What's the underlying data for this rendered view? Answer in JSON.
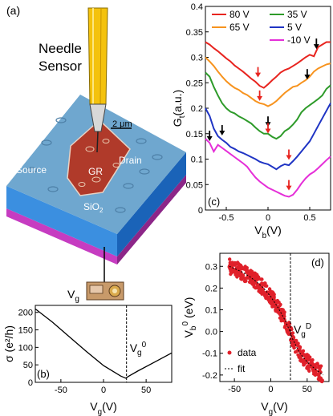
{
  "figure": {
    "panel_a": {
      "letter": "(a)",
      "needle_label_line1": "Needle",
      "needle_label_line2": "Sensor",
      "scale_bar_label": "2 μm",
      "source_label": "Source",
      "drain_label": "Drain",
      "graphene_label": "GR",
      "substrate_label": "SiO",
      "substrate_sub": "2",
      "gate_label": "V",
      "gate_sub": "g"
    },
    "colors": {
      "80V": "#e8241f",
      "65V": "#f7931e",
      "35V": "#2e9b2a",
      "5V": "#1f34c4",
      "-10V": "#e52fd8",
      "arrow_red": "#e8241f",
      "arrow_black": "#000000",
      "data_red": "#e0202a"
    }
  },
  "chart_data": [
    {
      "panel": "(b)",
      "type": "line",
      "xlabel": "V",
      "xlabel_sub": "g",
      "xlabel_unit": "(V)",
      "ylabel": "σ (e²/h)",
      "xlim": [
        -80,
        80
      ],
      "ylim": [
        0,
        220
      ],
      "xticks": [
        -50,
        0,
        50
      ],
      "yticks": [
        0,
        50,
        100,
        150,
        200
      ],
      "x": [
        -80,
        -60,
        -40,
        -20,
        0,
        20,
        26,
        30,
        40,
        60,
        80
      ],
      "y": [
        210,
        172,
        130,
        88,
        48,
        18,
        12,
        18,
        32,
        58,
        84
      ],
      "dirac_voltage": 27,
      "annotation": "V",
      "annotation_sub": "g",
      "annotation_sup": "0"
    },
    {
      "panel": "(c)",
      "type": "line",
      "xlabel": "V",
      "xlabel_sub": "b",
      "xlabel_unit": "(V)",
      "ylabel": "G",
      "ylabel_sub": "t",
      "ylabel_unit": "(a.u.)",
      "xlim": [
        -0.75,
        0.75
      ],
      "ylim": [
        0,
        0.4
      ],
      "xticks": [
        -0.5,
        0,
        0.5
      ],
      "yticks": [
        0,
        0.05,
        0.1,
        0.15,
        0.2,
        0.25,
        0.3,
        0.35,
        0.4
      ],
      "ytick_labels": [
        "0",
        "0.05",
        "0.1",
        "0.15",
        "0.2",
        "0.25",
        "0.3",
        "0.35",
        "0.4"
      ],
      "xtick_labels": [
        "-0.5",
        "0",
        "0.5"
      ],
      "x": [
        -0.75,
        -0.7,
        -0.65,
        -0.6,
        -0.55,
        -0.5,
        -0.45,
        -0.4,
        -0.35,
        -0.3,
        -0.25,
        -0.2,
        -0.15,
        -0.1,
        -0.05,
        0,
        0.05,
        0.1,
        0.15,
        0.2,
        0.25,
        0.3,
        0.35,
        0.4,
        0.45,
        0.5,
        0.55,
        0.6,
        0.65,
        0.7,
        0.75
      ],
      "series": [
        {
          "name": "80 V",
          "color": "#e8241f",
          "values": [
            0.33,
            0.325,
            0.318,
            0.312,
            0.305,
            0.298,
            0.292,
            0.284,
            0.278,
            0.272,
            0.265,
            0.258,
            0.252,
            0.244,
            0.24,
            0.247,
            0.255,
            0.262,
            0.27,
            0.275,
            0.278,
            0.283,
            0.288,
            0.294,
            0.3,
            0.305,
            0.302,
            0.32,
            0.325,
            0.33,
            0.33
          ]
        },
        {
          "name": "65 V",
          "color": "#f7931e",
          "values": [
            0.3,
            0.292,
            0.283,
            0.272,
            0.262,
            0.253,
            0.246,
            0.24,
            0.236,
            0.23,
            0.226,
            0.22,
            0.214,
            0.21,
            0.208,
            0.204,
            0.208,
            0.214,
            0.222,
            0.23,
            0.236,
            0.242,
            0.244,
            0.25,
            0.255,
            0.262,
            0.272,
            0.278,
            0.282,
            0.286,
            0.288
          ]
        },
        {
          "name": "35 V",
          "color": "#2e9b2a",
          "values": [
            0.27,
            0.262,
            0.242,
            0.225,
            0.21,
            0.2,
            0.193,
            0.19,
            0.184,
            0.18,
            0.175,
            0.17,
            0.162,
            0.155,
            0.15,
            0.15,
            0.144,
            0.14,
            0.145,
            0.155,
            0.16,
            0.168,
            0.178,
            0.192,
            0.2,
            0.206,
            0.212,
            0.218,
            0.225,
            0.238,
            0.245
          ]
        },
        {
          "name": "5 V",
          "color": "#1f34c4",
          "values": [
            0.2,
            0.185,
            0.16,
            0.145,
            0.138,
            0.132,
            0.124,
            0.12,
            0.115,
            0.112,
            0.108,
            0.104,
            0.1,
            0.095,
            0.092,
            0.09,
            0.085,
            0.08,
            0.086,
            0.09,
            0.088,
            0.096,
            0.105,
            0.115,
            0.125,
            0.135,
            0.15,
            0.165,
            0.18,
            0.195,
            0.21
          ]
        },
        {
          "name": "-10 V",
          "color": "#e52fd8",
          "values": [
            0.14,
            0.132,
            0.115,
            0.128,
            0.122,
            0.116,
            0.11,
            0.104,
            0.098,
            0.092,
            0.085,
            0.074,
            0.064,
            0.056,
            0.05,
            0.044,
            0.04,
            0.036,
            0.032,
            0.028,
            0.026,
            0.03,
            0.04,
            0.052,
            0.062,
            0.07,
            0.075,
            0.082,
            0.09,
            0.098,
            0.105
          ]
        }
      ],
      "arrows": [
        {
          "x": -0.12,
          "y": 0.262,
          "color": "red"
        },
        {
          "x": 0.58,
          "y": 0.318,
          "color": "black"
        },
        {
          "x": -0.1,
          "y": 0.216,
          "color": "red"
        },
        {
          "x": 0.47,
          "y": 0.258,
          "color": "black"
        },
        {
          "x": 0.0,
          "y": 0.165,
          "color": "black"
        },
        {
          "x": 0.0,
          "y": 0.152,
          "color": "red"
        },
        {
          "x": 0.25,
          "y": 0.1,
          "color": "red"
        },
        {
          "x": -0.7,
          "y": 0.137,
          "color": "black"
        },
        {
          "x": -0.55,
          "y": 0.148,
          "color": "black"
        },
        {
          "x": 0.25,
          "y": 0.04,
          "color": "red"
        }
      ],
      "legend": {
        "placement": "top",
        "columns": 2
      },
      "annotation": "(c)"
    },
    {
      "panel": "(d)",
      "type": "scatter",
      "xlabel": "V",
      "xlabel_sub": "g",
      "xlabel_unit": "(V)",
      "ylabel": "V",
      "ylabel_sub": "b",
      "ylabel_sup": "0",
      "ylabel_unit": "(eV)",
      "xlim": [
        -70,
        80
      ],
      "ylim": [
        -0.23,
        0.36
      ],
      "xticks": [
        -50,
        0,
        50
      ],
      "yticks": [
        -0.2,
        -0.1,
        0.0,
        0.1,
        0.2,
        0.3
      ],
      "ytick_labels": [
        "-0.2",
        "-0.1",
        "0.0",
        "0.1",
        "0.2",
        "0.3"
      ],
      "dirac_voltage": 27,
      "annotation": "V",
      "annotation_sub": "g",
      "annotation_sup": "D",
      "legend": [
        "data",
        "fit"
      ],
      "fit": {
        "x": [
          -57,
          -50,
          -40,
          -30,
          -20,
          -10,
          0,
          10,
          20,
          25,
          27,
          30,
          40,
          50,
          60,
          72
        ],
        "y": [
          0.3,
          0.29,
          0.275,
          0.255,
          0.23,
          0.2,
          0.16,
          0.11,
          0.05,
          0.01,
          0.0,
          -0.035,
          -0.1,
          -0.14,
          -0.17,
          -0.2
        ]
      },
      "data_band_width": 0.035
    }
  ]
}
